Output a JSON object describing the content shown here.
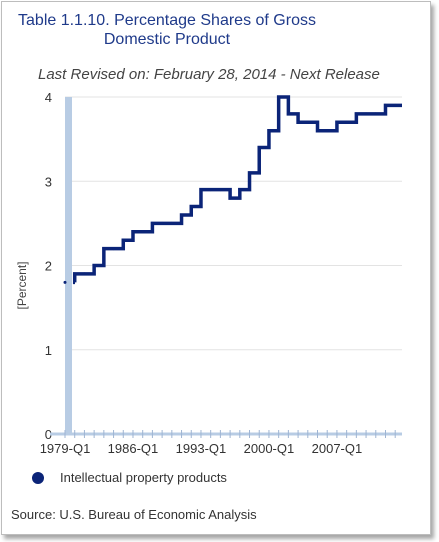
{
  "header": {
    "title": "Table 1.1.10. Percentage Shares of Gross Domestic Product",
    "subtitle": "Last Revised on: February 28, 2014 - Next Release"
  },
  "source_note": "Source: U.S. Bureau of Economic Analysis",
  "colors": {
    "series": "#0b2478",
    "axis_band": "#b8cce4",
    "grid": "#e3e3e3",
    "title": "#1f3a8a"
  },
  "chart_data": {
    "type": "line",
    "ylabel": "[Percent]",
    "xlabel": "",
    "ylim": [
      0,
      4
    ],
    "yticks": [
      "0",
      "1",
      "2",
      "3",
      "4"
    ],
    "xticks": [
      "1979-Q1",
      "1986-Q1",
      "1993-Q1",
      "2000-Q1",
      "2007-Q1"
    ],
    "grid": "horizontal",
    "legend_position": "bottom-left",
    "series": [
      {
        "name": "Intellectual property products",
        "x": [
          1979,
          1980,
          1981,
          1982,
          1983,
          1984,
          1985,
          1986,
          1987,
          1988,
          1989,
          1990,
          1991,
          1992,
          1993,
          1994,
          1995,
          1996,
          1997,
          1998,
          1999,
          2000,
          2001,
          2002,
          2003,
          2004,
          2005,
          2006,
          2007,
          2008,
          2009,
          2010,
          2011,
          2012,
          2013
        ],
        "values": [
          1.8,
          1.9,
          1.9,
          2.0,
          2.2,
          2.2,
          2.3,
          2.4,
          2.4,
          2.5,
          2.5,
          2.5,
          2.6,
          2.7,
          2.9,
          2.9,
          2.9,
          2.8,
          2.9,
          3.1,
          3.4,
          3.6,
          4.0,
          3.8,
          3.7,
          3.7,
          3.6,
          3.6,
          3.7,
          3.7,
          3.8,
          3.8,
          3.8,
          3.9,
          3.9
        ]
      }
    ]
  }
}
